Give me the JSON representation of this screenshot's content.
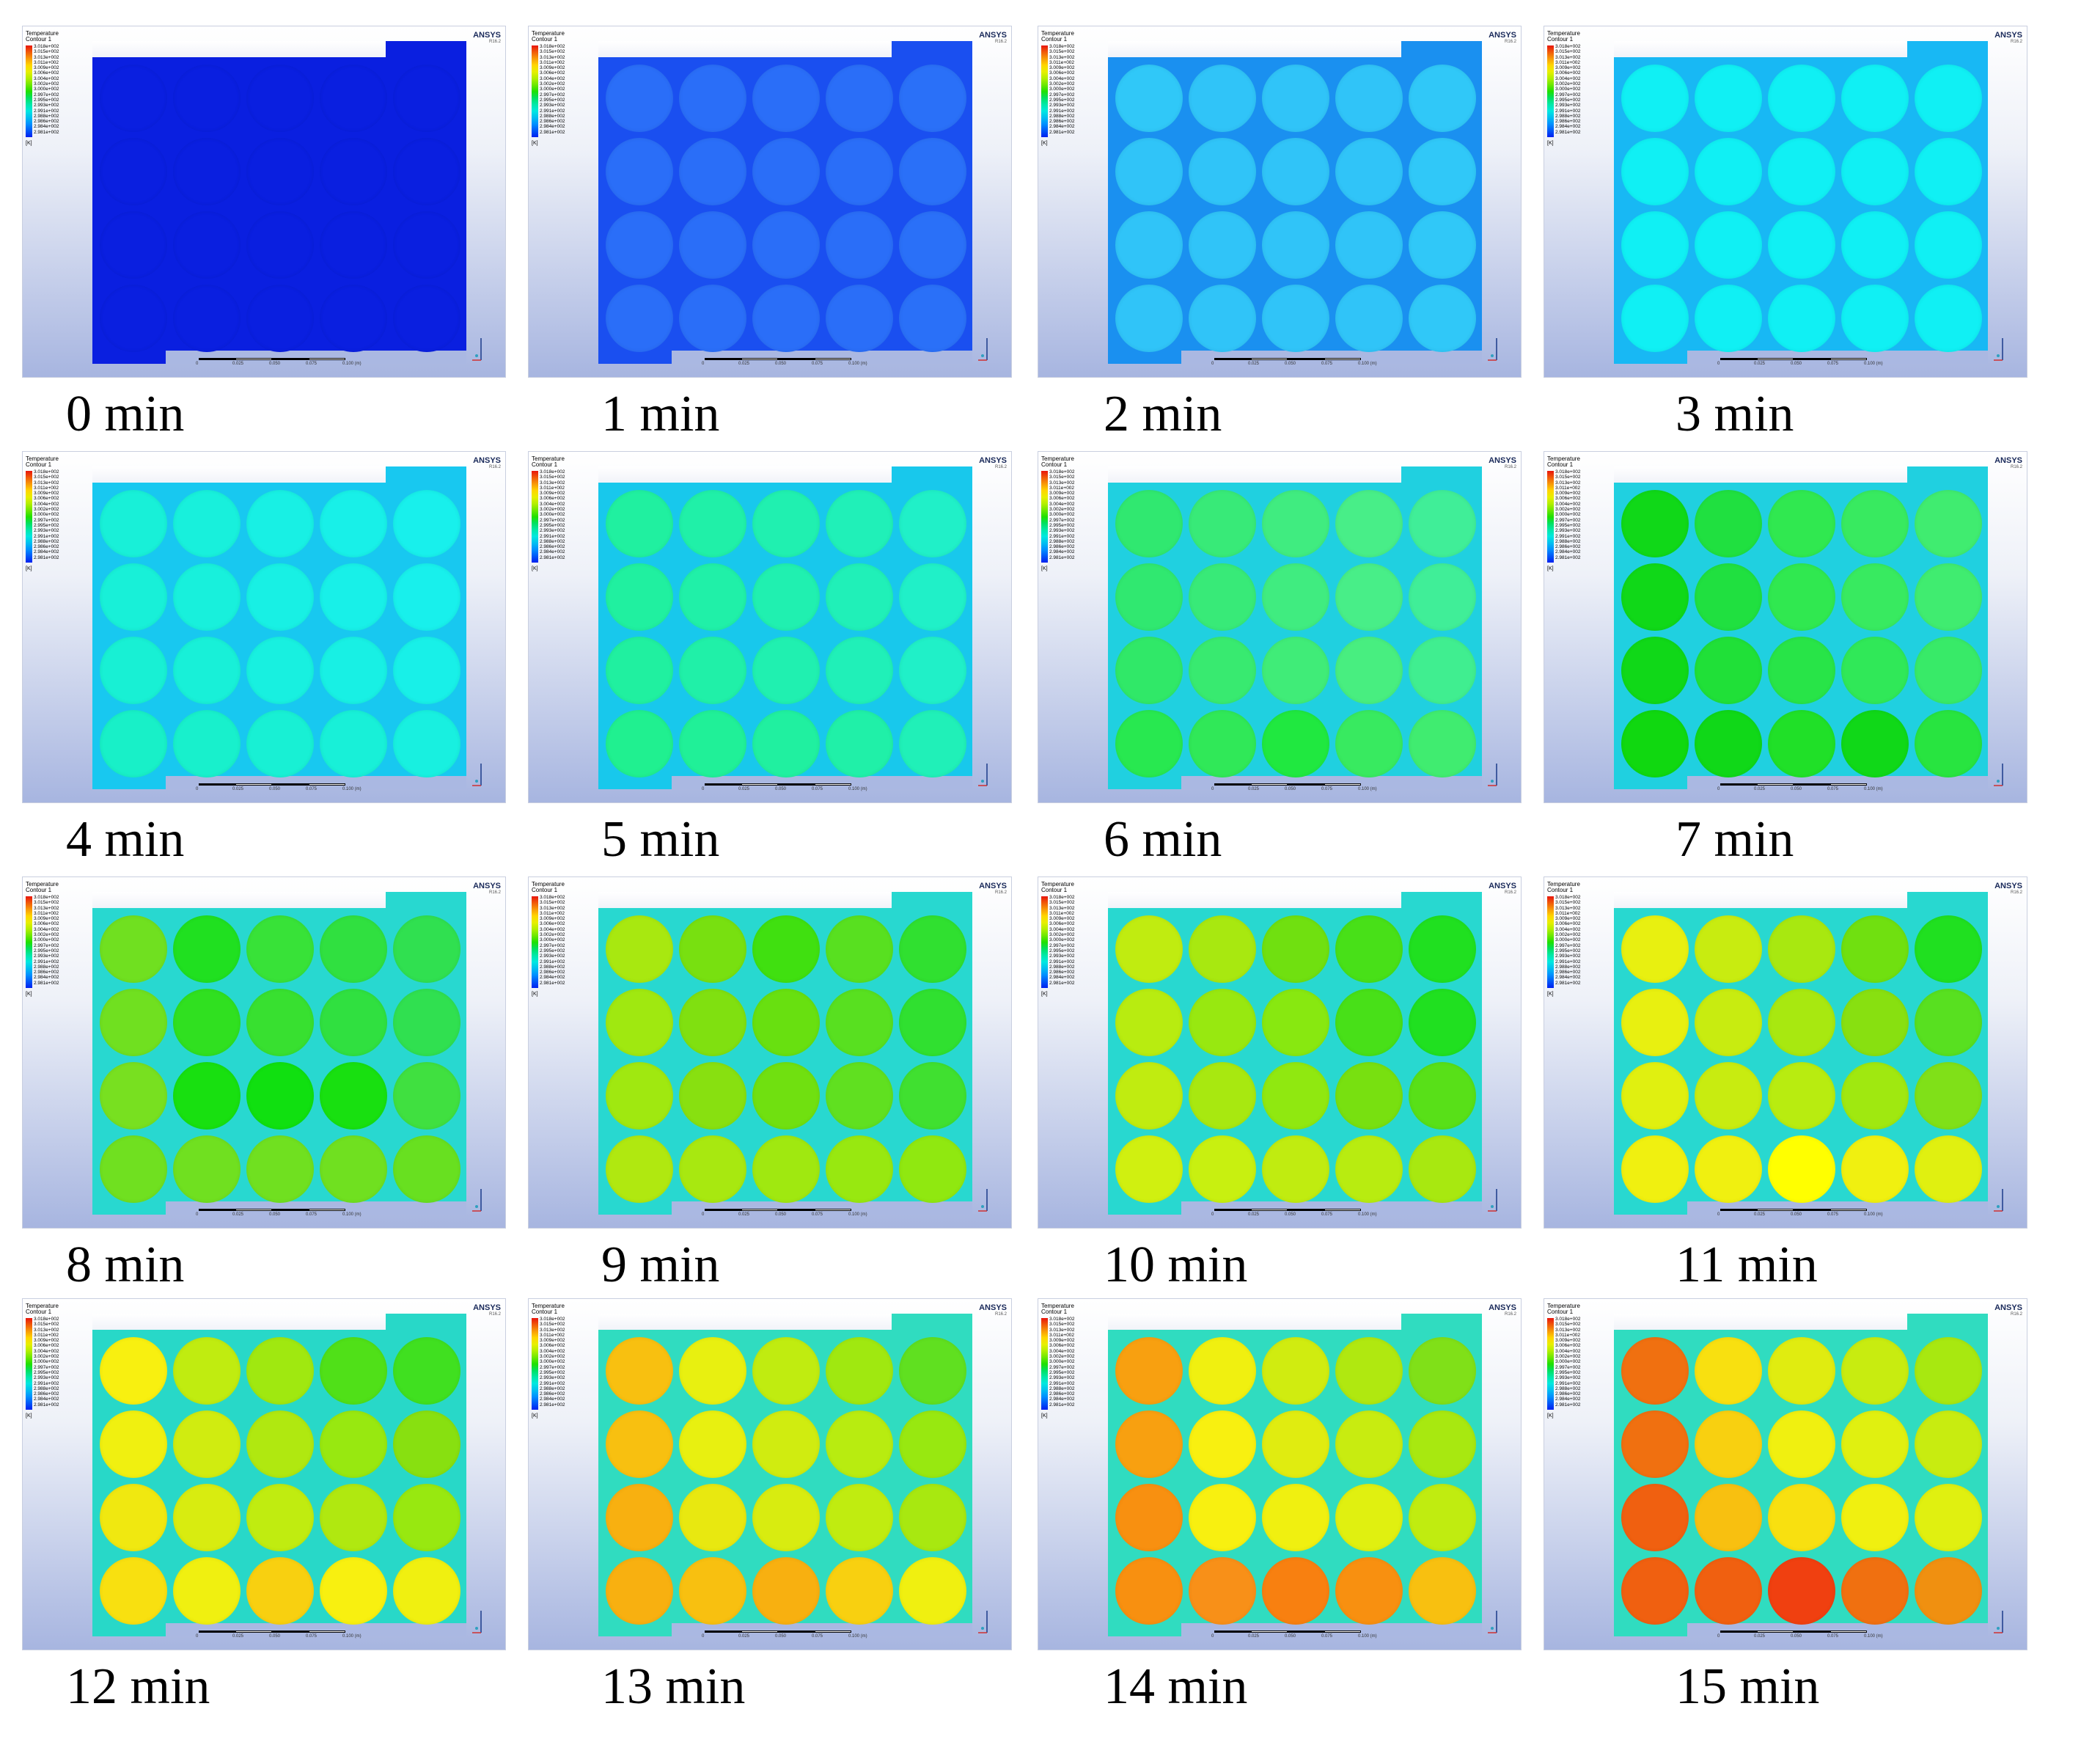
{
  "legend": {
    "title_line1": "Temperature",
    "title_line2": "Contour 1",
    "levels": [
      "3.018e+002",
      "3.015e+002",
      "3.013e+002",
      "3.011e+002",
      "3.009e+002",
      "3.006e+002",
      "3.004e+002",
      "3.002e+002",
      "3.000e+002",
      "2.997e+002",
      "2.995e+002",
      "2.993e+002",
      "2.991e+002",
      "2.988e+002",
      "2.986e+002",
      "2.984e+002",
      "2.981e+002"
    ],
    "unit": "[K]",
    "colormap_colors": [
      "#e8150c",
      "#f05a0a",
      "#f89a08",
      "#ffd500",
      "#e8ef00",
      "#b4ef00",
      "#6ee800",
      "#20e000",
      "#00e060",
      "#00e8a8",
      "#00e8e0",
      "#00c0f0",
      "#0090ff",
      "#0058f8",
      "#0020f0"
    ]
  },
  "brand": {
    "name": "ANSYS",
    "version": "R16.2"
  },
  "scalebar": {
    "labels": [
      "0",
      "0.025",
      "0.050",
      "0.075",
      "0.100 (m)"
    ]
  },
  "frames": [
    {
      "caption": "0 min",
      "bg": "#0a1fe0",
      "colors": [
        "#0a1fe0",
        "#0a1fe0",
        "#0a1fe0",
        "#0a1fe0",
        "#0a1fe0",
        "#0a1fe0",
        "#0a1fe0",
        "#0a1fe0",
        "#0a1fe0",
        "#0a1fe0",
        "#0a1fe0",
        "#0a1fe0",
        "#0a1fe0",
        "#0a1fe0",
        "#0a1fe0",
        "#0a1fe0",
        "#0a1fe0",
        "#0a1fe0",
        "#0a1fe0",
        "#0a1fe0"
      ]
    },
    {
      "caption": "1 min",
      "bg": "#1a4ff0",
      "colors": [
        "#2a6ef8",
        "#2a6ef8",
        "#2a6ef8",
        "#2a6ef8",
        "#2a70f8",
        "#2a6ef8",
        "#2a6ef8",
        "#2a6ef8",
        "#2a6ef8",
        "#2a70f8",
        "#2a6ef8",
        "#2a6ef8",
        "#2a6ef8",
        "#2a6ef8",
        "#2a70f8",
        "#2a6ef8",
        "#2a6ef8",
        "#2a6ef8",
        "#2a6ef8",
        "#2a70f8"
      ]
    },
    {
      "caption": "2 min",
      "bg": "#1a90f0",
      "colors": [
        "#30c8f8",
        "#30c4f8",
        "#30c4f8",
        "#30c4f8",
        "#30c8f8",
        "#30c4f8",
        "#30c4f8",
        "#30c4f8",
        "#30c4f8",
        "#30c8f8",
        "#30c4f8",
        "#30c4f8",
        "#30c4f8",
        "#30c4f8",
        "#30c8f8",
        "#30c4f8",
        "#30c4f8",
        "#30c4f8",
        "#30c4f8",
        "#30c8f8"
      ]
    },
    {
      "caption": "3 min",
      "bg": "#18b8f4",
      "colors": [
        "#10f0f4",
        "#10f0f4",
        "#10f0f4",
        "#10f0f4",
        "#10f0f4",
        "#10f0f4",
        "#10f0f4",
        "#10f0f4",
        "#10f0f4",
        "#10f0f4",
        "#10f0f4",
        "#10f0f4",
        "#10f0f4",
        "#10f0f4",
        "#10f0f4",
        "#10f0f4",
        "#10f0f4",
        "#10f0f4",
        "#10f0f4",
        "#10f0f4"
      ]
    },
    {
      "caption": "4 min",
      "bg": "#18c8f0",
      "colors": [
        "#18f0d8",
        "#18f0dc",
        "#18f0e4",
        "#18f0e8",
        "#18f0ec",
        "#18f0d8",
        "#18f0dc",
        "#18f0e4",
        "#18f0e8",
        "#18f0ec",
        "#18f0d4",
        "#18f0d8",
        "#18f0e0",
        "#18f0e4",
        "#18f0e8",
        "#18f0c8",
        "#18f0cc",
        "#18f0d4",
        "#18f0d8",
        "#18f0e0"
      ]
    },
    {
      "caption": "5 min",
      "bg": "#18c8ec",
      "colors": [
        "#20f0a0",
        "#20f0a8",
        "#20f0b0",
        "#20f0b8",
        "#20f0c8",
        "#20f0a0",
        "#20f0a8",
        "#20f0b0",
        "#20f0b8",
        "#20f0c8",
        "#20f0a0",
        "#20f0a8",
        "#20f0b0",
        "#20f0b8",
        "#20f0c8",
        "#20f090",
        "#20f098",
        "#20f0a0",
        "#20f0a8",
        "#20f0b8"
      ]
    },
    {
      "caption": "6 min",
      "bg": "#20d0e0",
      "colors": [
        "#30e870",
        "#38ea78",
        "#40ec80",
        "#48ee88",
        "#40ee98",
        "#30e870",
        "#38ea78",
        "#40ec80",
        "#48ee88",
        "#40ee98",
        "#30e868",
        "#38ea70",
        "#40ec78",
        "#48ee80",
        "#40ee90",
        "#28e850",
        "#30e858",
        "#20e840",
        "#38ea60",
        "#40ec70"
      ]
    },
    {
      "caption": "7 min",
      "bg": "#20d0e0",
      "colors": [
        "#10d818",
        "#20e040",
        "#30e850",
        "#38ea60",
        "#40ec70",
        "#10d818",
        "#20e040",
        "#30e850",
        "#38ea60",
        "#40ec70",
        "#10d818",
        "#20e038",
        "#28e448",
        "#30e858",
        "#38ea68",
        "#10d810",
        "#10d818",
        "#20e028",
        "#10d818",
        "#28e440"
      ]
    },
    {
      "caption": "8 min",
      "bg": "#28d8d0",
      "colors": [
        "#70e020",
        "#20e020",
        "#38e238",
        "#30e040",
        "#30e050",
        "#70e020",
        "#30e020",
        "#38e030",
        "#30e040",
        "#30e050",
        "#78e020",
        "#18e010",
        "#10e010",
        "#18e010",
        "#40e040",
        "#70e020",
        "#70e020",
        "#70e020",
        "#70e020",
        "#68e020"
      ]
    },
    {
      "caption": "9 min",
      "bg": "#28d8d0",
      "colors": [
        "#a8e810",
        "#78e010",
        "#40e010",
        "#58e020",
        "#30e030",
        "#a0e810",
        "#80e010",
        "#68e010",
        "#58e020",
        "#30e030",
        "#a0e810",
        "#88e010",
        "#70e010",
        "#60e020",
        "#40e030",
        "#b0e810",
        "#a8e810",
        "#a0e810",
        "#98e810",
        "#90e810"
      ]
    },
    {
      "caption": "10 min",
      "bg": "#28d8d0",
      "colors": [
        "#c0ec10",
        "#a8e810",
        "#70e010",
        "#48e018",
        "#20e020",
        "#b8ec10",
        "#98e810",
        "#88e810",
        "#48e018",
        "#20e020",
        "#c0ec10",
        "#a8e810",
        "#90e810",
        "#78e010",
        "#58e018",
        "#d0f010",
        "#c8f010",
        "#c0ec10",
        "#b8ec10",
        "#a8e810"
      ]
    },
    {
      "caption": "11 min",
      "bg": "#28d8d0",
      "colors": [
        "#e8f010",
        "#c8ec10",
        "#a8e810",
        "#70e010",
        "#20e020",
        "#e8f010",
        "#c8ec10",
        "#a8e810",
        "#88e010",
        "#58e020",
        "#e0f010",
        "#c8ec10",
        "#b8ec10",
        "#a0e810",
        "#80e018",
        "#f0f010",
        "#f0f010",
        "#ffff00",
        "#f0f010",
        "#e0f010"
      ]
    },
    {
      "caption": "12 min",
      "bg": "#28d8c8",
      "colors": [
        "#f8f010",
        "#c0ec10",
        "#a0e810",
        "#50e018",
        "#40e020",
        "#f0f010",
        "#d0ec10",
        "#b0e810",
        "#98e810",
        "#88e010",
        "#f0e810",
        "#d8ec10",
        "#c0ec10",
        "#b0e810",
        "#98e810",
        "#f8e010",
        "#f0f010",
        "#f8d010",
        "#f8f010",
        "#f0f010"
      ]
    },
    {
      "caption": "13 min",
      "bg": "#30dcc0",
      "colors": [
        "#f8c010",
        "#e8f010",
        "#c0ec10",
        "#a0e810",
        "#60e020",
        "#f8c010",
        "#e8f010",
        "#d0ec10",
        "#b8ec10",
        "#98e810",
        "#f8b010",
        "#e8e810",
        "#d8ec10",
        "#c0ec10",
        "#a8e810",
        "#f8b010",
        "#f8c010",
        "#f8b010",
        "#f8d010",
        "#f0f010"
      ]
    },
    {
      "caption": "14 min",
      "bg": "#30dcc0",
      "colors": [
        "#f8a010",
        "#f0f010",
        "#d0ec10",
        "#b0e810",
        "#80e018",
        "#f8a010",
        "#f8f010",
        "#e0ec10",
        "#c8ec10",
        "#a8e810",
        "#f89010",
        "#f8f010",
        "#f0f010",
        "#e0f010",
        "#c0ec10",
        "#f89010",
        "#f89018",
        "#f88010",
        "#f89010",
        "#f8c010"
      ]
    },
    {
      "caption": "15 min",
      "bg": "#30dcc0",
      "colors": [
        "#f07010",
        "#f8e010",
        "#e0ec10",
        "#c8ec10",
        "#a8e810",
        "#f07010",
        "#f8d010",
        "#f0f010",
        "#e0f010",
        "#c8ec10",
        "#f06010",
        "#f8c010",
        "#f8e010",
        "#f0f010",
        "#e0f010",
        "#f06010",
        "#f06010",
        "#f04010",
        "#f07010",
        "#f09010"
      ]
    }
  ]
}
